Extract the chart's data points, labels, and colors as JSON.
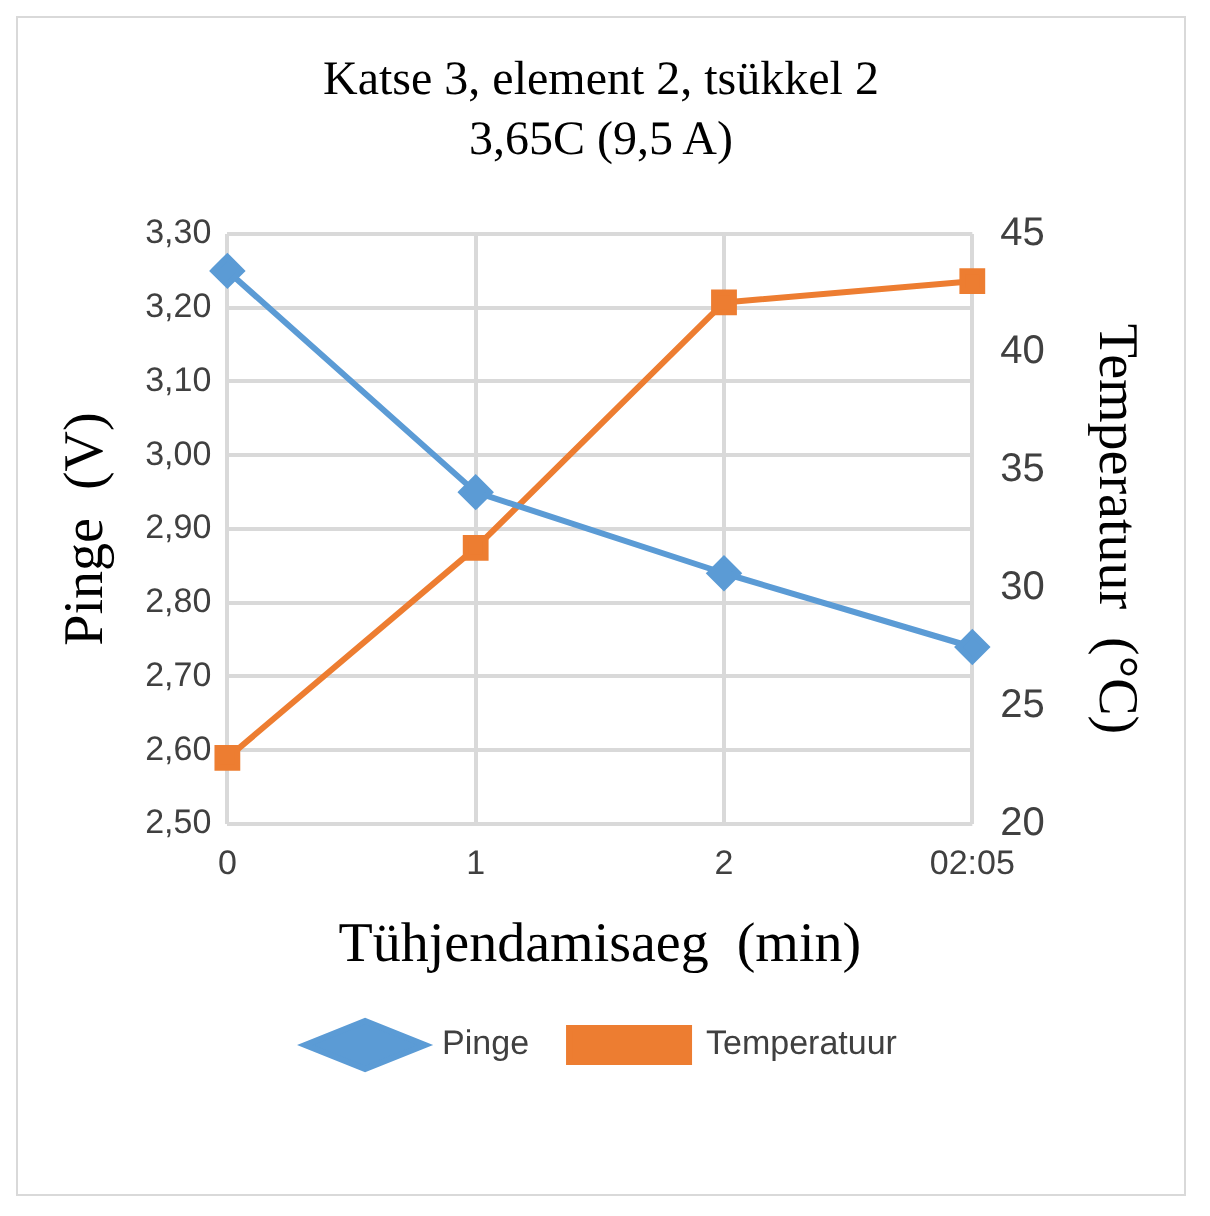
{
  "chart_data": {
    "type": "line",
    "title": "Katse 3, element 2, tsükkel 2",
    "subtitle": "3,65C (9,5 A)",
    "xlabel": "Tühjendamisaeg  (min)",
    "ylabel": "Pinge  (V)",
    "y2label": "Temperatuur  (°C)",
    "categories": [
      "0",
      "1",
      "2",
      "02:05"
    ],
    "series": [
      {
        "name": "Pinge",
        "color": "#5b9bd5",
        "marker": "diamond",
        "values": [
          3.25,
          2.95,
          2.84,
          2.74
        ]
      },
      {
        "name": "Temperatuur",
        "color": "#ed7d31",
        "marker": "square",
        "axis": "y2",
        "values": [
          22.8,
          31.7,
          42.1,
          43.0
        ]
      }
    ],
    "ylim": [
      2.5,
      3.3
    ],
    "yticks": [
      {
        "value": 2.5,
        "label": "2,50"
      },
      {
        "value": 2.6,
        "label": "2,60"
      },
      {
        "value": 2.7,
        "label": "2,70"
      },
      {
        "value": 2.8,
        "label": "2,80"
      },
      {
        "value": 2.9,
        "label": "2,90"
      },
      {
        "value": 3.0,
        "label": "3,00"
      },
      {
        "value": 3.1,
        "label": "3,10"
      },
      {
        "value": 3.2,
        "label": "3,20"
      },
      {
        "value": 3.3,
        "label": "3,30"
      }
    ],
    "y2lim": [
      20,
      45
    ],
    "y2ticks": [
      20,
      25,
      30,
      35,
      40,
      45
    ],
    "grid": true,
    "legend": "bottom"
  }
}
